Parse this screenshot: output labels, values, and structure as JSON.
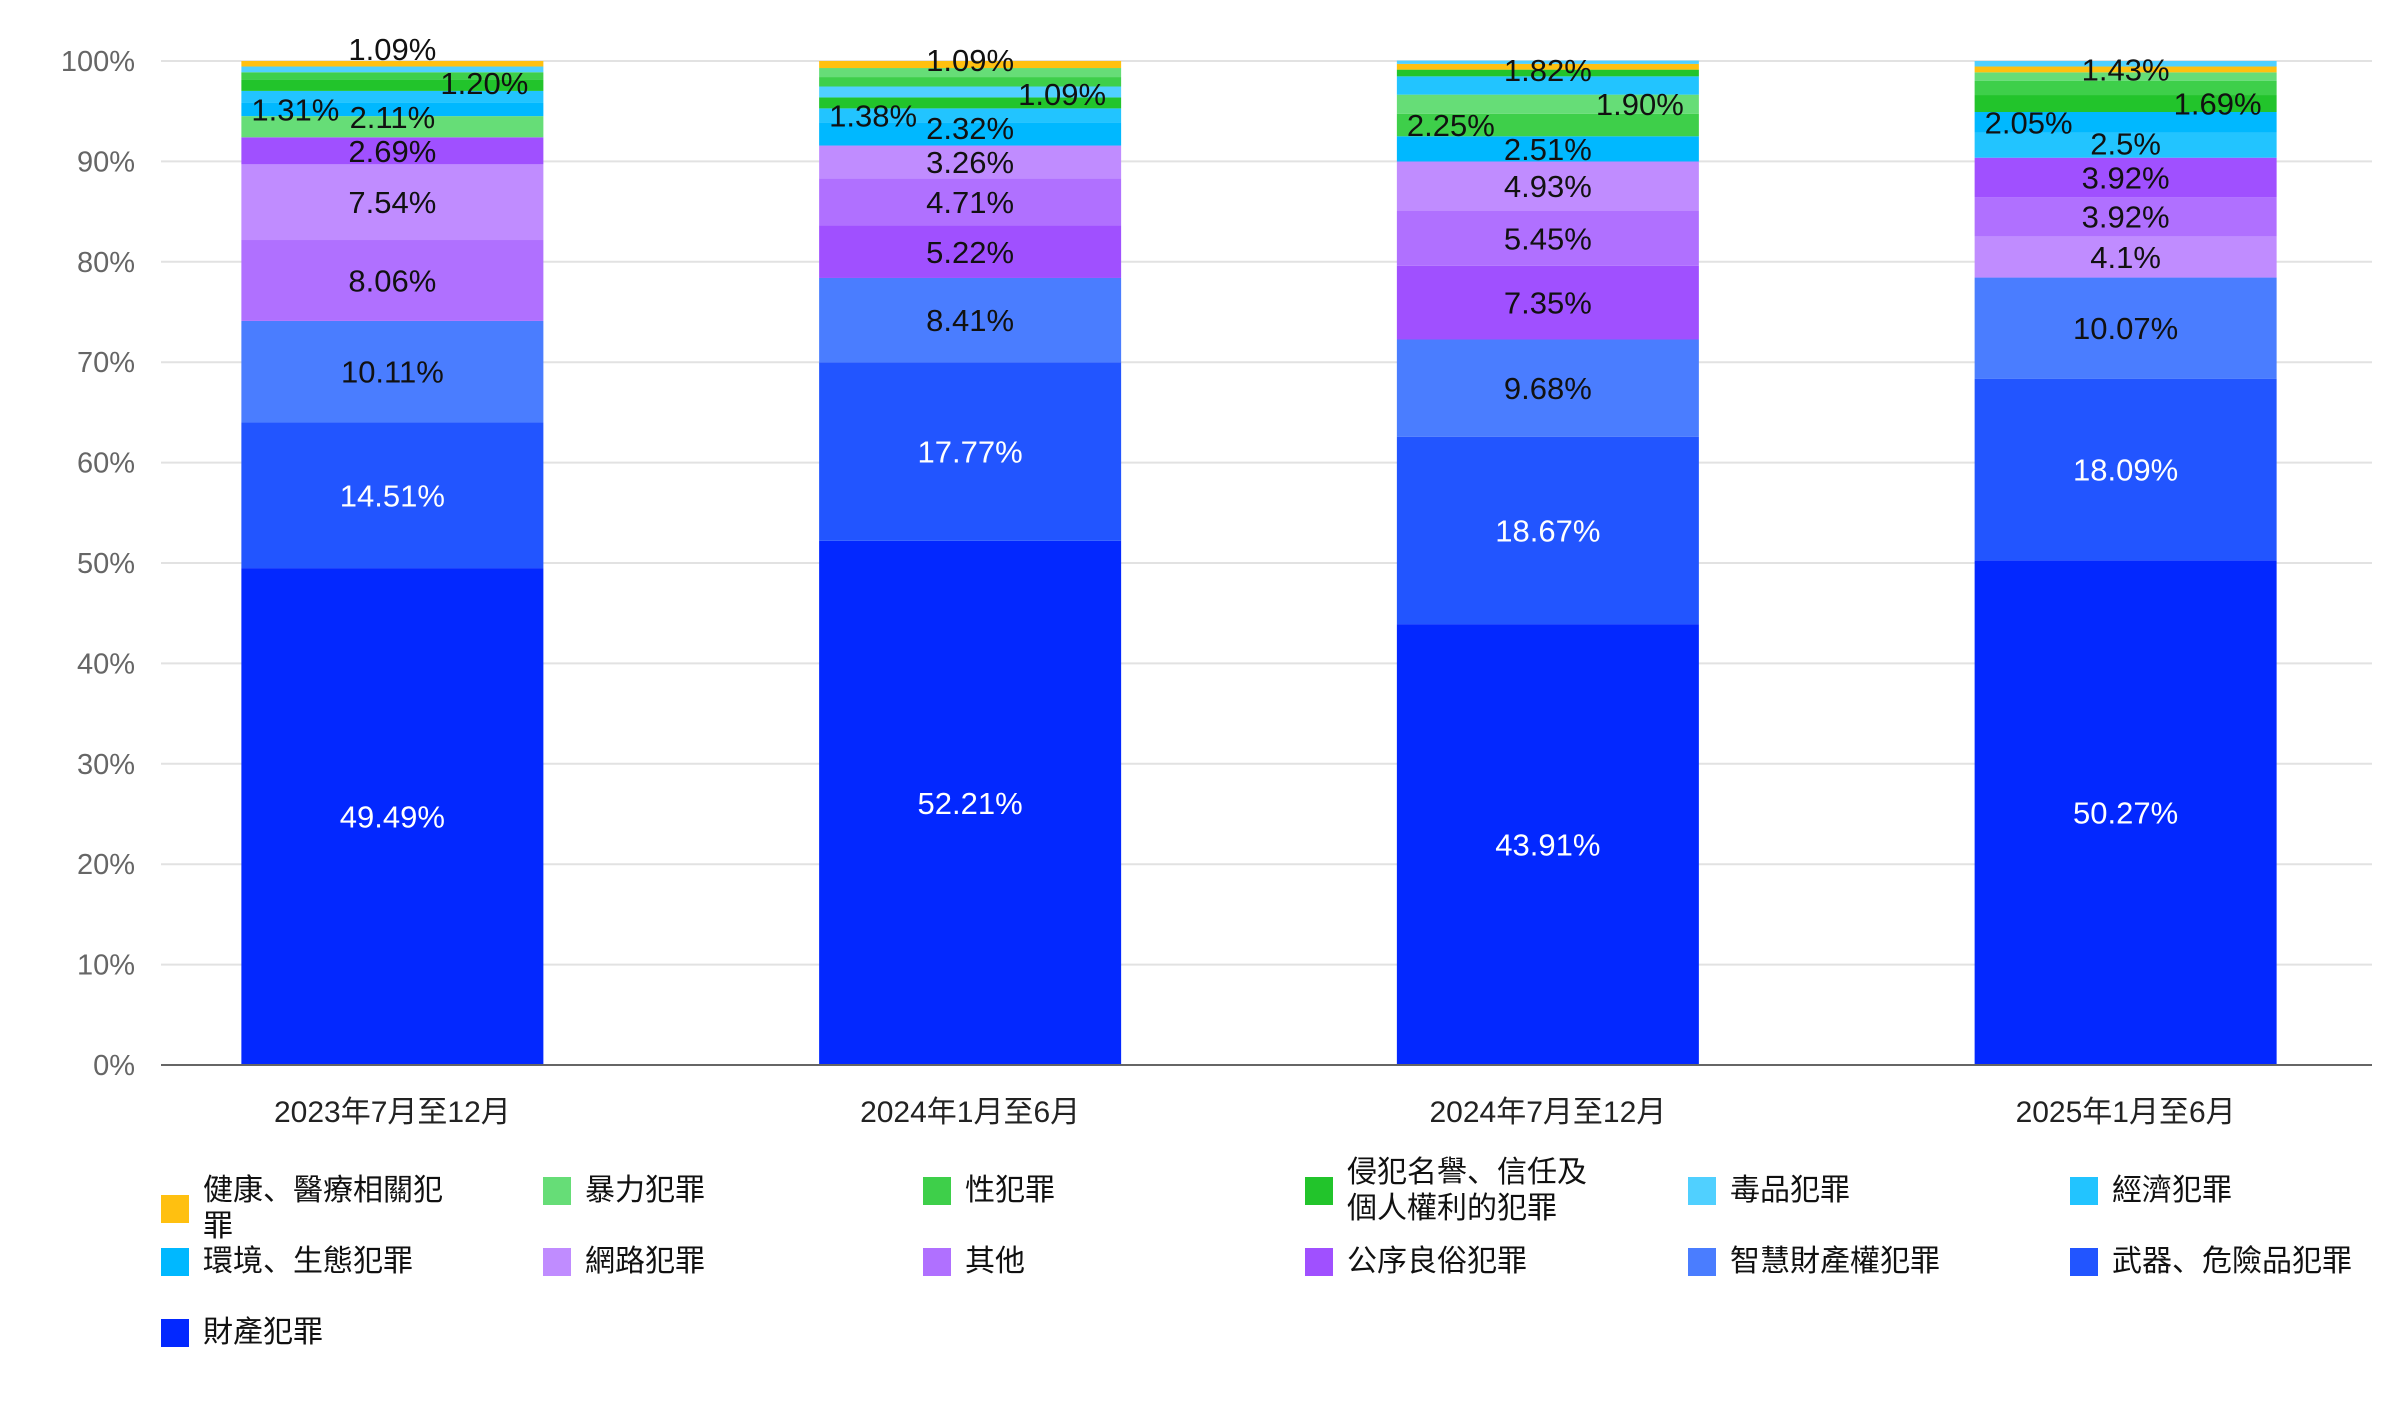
{
  "chart_data": {
    "type": "bar",
    "stacked": true,
    "normalized": true,
    "title": "",
    "xlabel": "",
    "ylabel": "",
    "ylim": [
      0,
      100
    ],
    "yticks": [
      "0%",
      "10%",
      "20%",
      "30%",
      "40%",
      "50%",
      "60%",
      "70%",
      "80%",
      "90%",
      "100%"
    ],
    "grid": true,
    "legend_position": "bottom",
    "categories": [
      "2023年7月至12月",
      "2024年1月至6月",
      "2024年7月至12月",
      "2025年1月至6月"
    ],
    "series": [
      {
        "name": "健康、醫療相關犯罪",
        "color": "#ffc010",
        "values": [
          0.55,
          0.7,
          0.57,
          0.58
        ],
        "labels": [
          "",
          "",
          "",
          ""
        ]
      },
      {
        "name": "暴力犯罪",
        "color": "#66dd77",
        "values": [
          2.11,
          0.9,
          1.9,
          0.83
        ],
        "labels": [
          "2.11%",
          "",
          "1.90%",
          ""
        ]
      },
      {
        "name": "性犯罪",
        "color": "#3ecf4a",
        "values": [
          0.77,
          0.94,
          2.25,
          1.43
        ],
        "labels": [
          "",
          "",
          "2.25%",
          "1.43%"
        ]
      },
      {
        "name": "侵犯名譽、信任及個人權利的犯罪",
        "color": "#22c42b",
        "values": [
          1.09,
          1.09,
          0.67,
          1.69
        ],
        "labels": [
          "1.09%",
          "1.09%",
          "",
          "1.69%"
        ]
      },
      {
        "name": "毒品犯罪",
        "color": "#50d0ff",
        "values": [
          0.57,
          1.09,
          0.33,
          0.55
        ],
        "labels": [
          "",
          "1.09%",
          "",
          ""
        ]
      },
      {
        "name": "經濟犯罪",
        "color": "#22c4ff",
        "values": [
          1.2,
          1.38,
          1.82,
          2.5
        ],
        "labels": [
          "1.20%",
          "1.38%",
          "1.82%",
          "2.5%"
        ]
      },
      {
        "name": "環境、生態犯罪",
        "color": "#00b8ff",
        "values": [
          1.31,
          2.32,
          2.51,
          2.05
        ],
        "labels": [
          "1.31%",
          "2.32%",
          "2.51%",
          "2.05%"
        ]
      },
      {
        "name": "網路犯罪",
        "color": "#c08cff",
        "values": [
          7.54,
          3.26,
          4.93,
          4.1
        ],
        "labels": [
          "7.54%",
          "3.26%",
          "4.93%",
          "4.1%"
        ]
      },
      {
        "name": "其他",
        "color": "#b070ff",
        "values": [
          8.06,
          4.71,
          5.45,
          3.92
        ],
        "labels": [
          "8.06%",
          "4.71%",
          "5.45%",
          "3.92%"
        ]
      },
      {
        "name": "公序良俗犯罪",
        "color": "#a050ff",
        "values": [
          2.69,
          5.22,
          7.35,
          3.92
        ],
        "labels": [
          "2.69%",
          "5.22%",
          "7.35%",
          "3.92%"
        ]
      },
      {
        "name": "智慧財產權犯罪",
        "color": "#4a7dff",
        "values": [
          10.11,
          8.41,
          9.68,
          10.07
        ],
        "labels": [
          "10.11%",
          "8.41%",
          "9.68%",
          "10.07%"
        ]
      },
      {
        "name": "武器、危險品犯罪",
        "color": "#2255ff",
        "values": [
          14.51,
          17.77,
          18.67,
          18.09
        ],
        "labels": [
          "14.51%",
          "17.77%",
          "18.67%",
          "18.09%"
        ]
      },
      {
        "name": "財產犯罪",
        "color": "#0328ff",
        "values": [
          49.49,
          52.21,
          43.91,
          50.27
        ],
        "labels": [
          "49.49%",
          "52.21%",
          "43.91%",
          "50.27%"
        ]
      }
    ]
  }
}
